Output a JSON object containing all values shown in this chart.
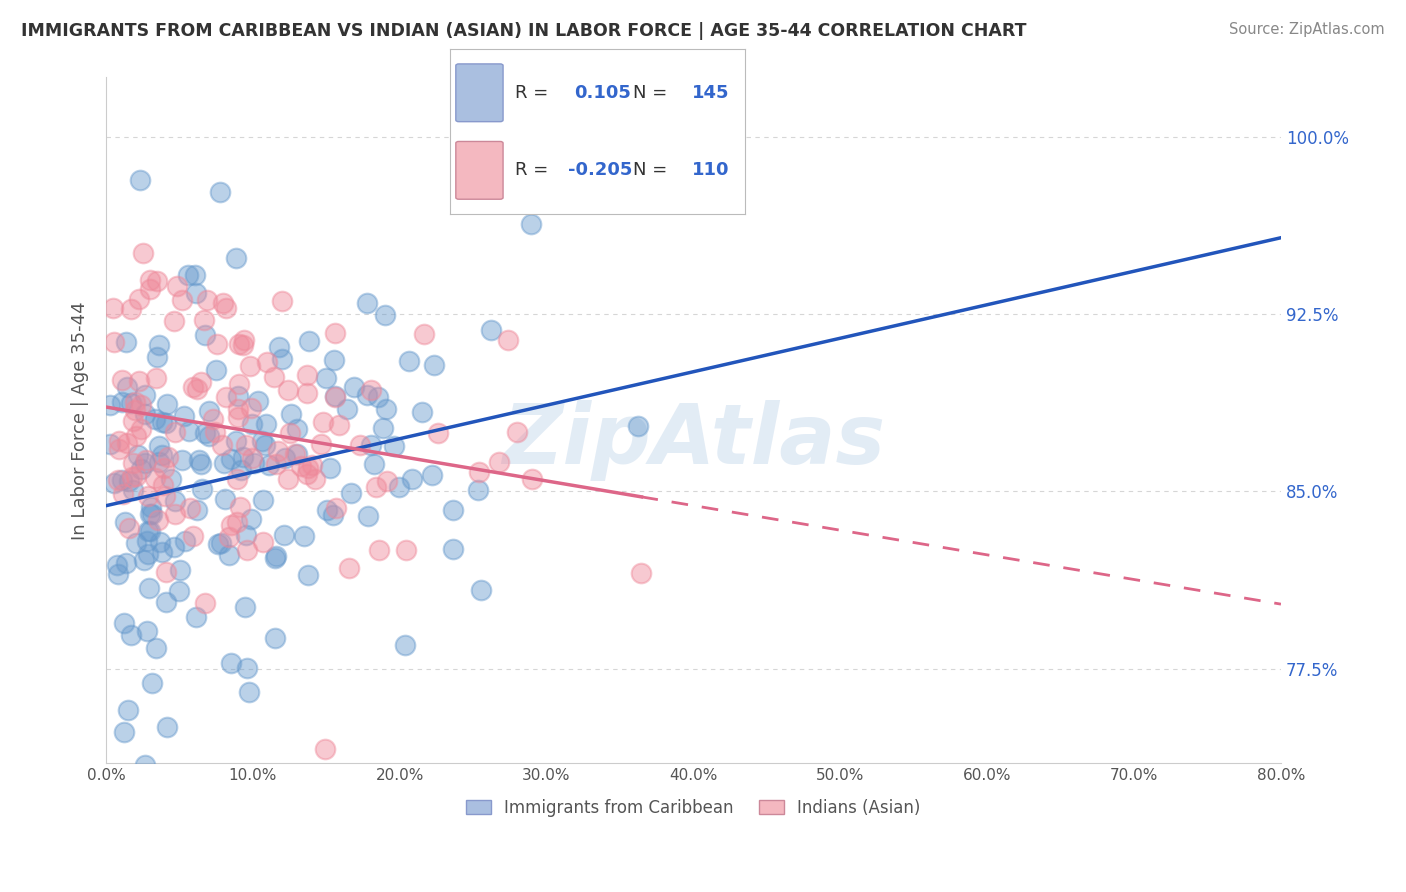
{
  "title": "IMMIGRANTS FROM CARIBBEAN VS INDIAN (ASIAN) IN LABOR FORCE | AGE 35-44 CORRELATION CHART",
  "source": "Source: ZipAtlas.com",
  "ylabel": "In Labor Force | Age 35-44",
  "xlim": [
    0.0,
    0.8
  ],
  "ylim": [
    0.735,
    1.025
  ],
  "yticks": [
    0.775,
    0.85,
    0.925,
    1.0
  ],
  "ytick_labels": [
    "77.5%",
    "85.0%",
    "92.5%",
    "100.0%"
  ],
  "xticks": [
    0.0,
    0.1,
    0.2,
    0.3,
    0.4,
    0.5,
    0.6,
    0.7,
    0.8
  ],
  "xtick_labels": [
    "0.0%",
    "10.0%",
    "20.0%",
    "30.0%",
    "40.0%",
    "50.0%",
    "60.0%",
    "70.0%",
    "80.0%"
  ],
  "series": [
    {
      "name": "Immigrants from Caribbean",
      "R": 0.105,
      "N": 145,
      "color": "#6699cc",
      "legend_color": "#aabfe0",
      "trend_color": "#2255bb",
      "trend_style": "solid"
    },
    {
      "name": "Indians (Asian)",
      "R": -0.205,
      "N": 110,
      "color": "#ee8899",
      "legend_color": "#f4b8c0",
      "trend_color": "#dd6688",
      "trend_style": "dashed"
    }
  ],
  "watermark": "ZipAtlas",
  "background_color": "#ffffff",
  "grid_color": "#cccccc",
  "title_color": "#333333",
  "axis_label_color": "#555555",
  "yaxis_tick_color": "#3366cc",
  "scatter_size": 200,
  "scatter_alpha": 0.45,
  "scatter_edge_alpha": 0.7,
  "scatter_linewidth": 1.5
}
